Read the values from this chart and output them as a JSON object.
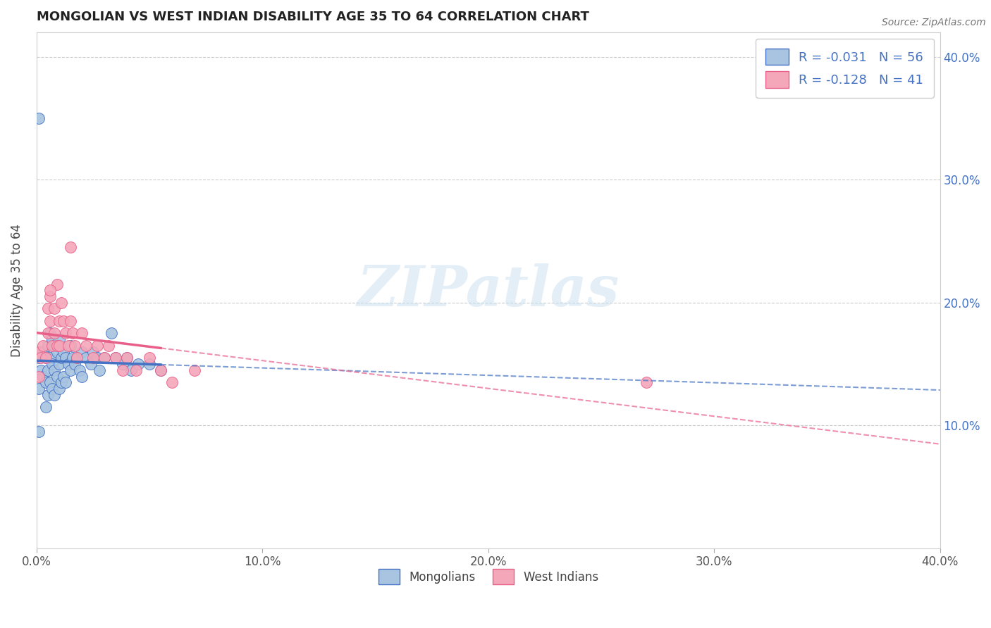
{
  "title": "MONGOLIAN VS WEST INDIAN DISABILITY AGE 35 TO 64 CORRELATION CHART",
  "source": "Source: ZipAtlas.com",
  "ylabel": "Disability Age 35 to 64",
  "xlim": [
    0.0,
    0.4
  ],
  "ylim": [
    0.0,
    0.42
  ],
  "xtick_values": [
    0.0,
    0.1,
    0.2,
    0.3,
    0.4
  ],
  "ytick_values": [
    0.1,
    0.2,
    0.3,
    0.4
  ],
  "mongolian_R": -0.031,
  "mongolian_N": 56,
  "westindian_R": -0.128,
  "westindian_N": 41,
  "mongolian_color": "#a8c4e0",
  "westindian_color": "#f4a7b9",
  "mongolian_line_color": "#4472C4",
  "westindian_line_color": "#E8608A",
  "legend_mongolians": "Mongolians",
  "legend_westindians": "West Indians",
  "mongolian_scatter_x": [
    0.001,
    0.001,
    0.002,
    0.003,
    0.003,
    0.004,
    0.004,
    0.004,
    0.005,
    0.005,
    0.005,
    0.006,
    0.006,
    0.006,
    0.007,
    0.007,
    0.007,
    0.008,
    0.008,
    0.008,
    0.009,
    0.009,
    0.01,
    0.01,
    0.01,
    0.011,
    0.011,
    0.012,
    0.012,
    0.013,
    0.013,
    0.014,
    0.015,
    0.015,
    0.016,
    0.017,
    0.018,
    0.019,
    0.02,
    0.02,
    0.022,
    0.024,
    0.025,
    0.027,
    0.028,
    0.03,
    0.035,
    0.038,
    0.04,
    0.042,
    0.045,
    0.05,
    0.055,
    0.001,
    0.033,
    0.001
  ],
  "mongolian_scatter_y": [
    0.155,
    0.13,
    0.145,
    0.16,
    0.14,
    0.155,
    0.135,
    0.115,
    0.165,
    0.145,
    0.125,
    0.175,
    0.155,
    0.135,
    0.17,
    0.15,
    0.13,
    0.165,
    0.145,
    0.125,
    0.16,
    0.14,
    0.17,
    0.15,
    0.13,
    0.155,
    0.135,
    0.16,
    0.14,
    0.155,
    0.135,
    0.15,
    0.165,
    0.145,
    0.155,
    0.15,
    0.155,
    0.145,
    0.16,
    0.14,
    0.155,
    0.15,
    0.16,
    0.155,
    0.145,
    0.155,
    0.155,
    0.15,
    0.155,
    0.145,
    0.15,
    0.15,
    0.145,
    0.35,
    0.175,
    0.095
  ],
  "westindian_scatter_x": [
    0.001,
    0.001,
    0.002,
    0.003,
    0.004,
    0.005,
    0.005,
    0.006,
    0.006,
    0.007,
    0.008,
    0.008,
    0.009,
    0.01,
    0.01,
    0.011,
    0.012,
    0.013,
    0.014,
    0.015,
    0.016,
    0.017,
    0.018,
    0.02,
    0.022,
    0.025,
    0.027,
    0.03,
    0.032,
    0.035,
    0.038,
    0.04,
    0.044,
    0.05,
    0.055,
    0.06,
    0.07,
    0.27,
    0.015,
    0.009,
    0.006
  ],
  "westindian_scatter_y": [
    0.16,
    0.14,
    0.155,
    0.165,
    0.155,
    0.195,
    0.175,
    0.205,
    0.185,
    0.165,
    0.195,
    0.175,
    0.165,
    0.185,
    0.165,
    0.2,
    0.185,
    0.175,
    0.165,
    0.185,
    0.175,
    0.165,
    0.155,
    0.175,
    0.165,
    0.155,
    0.165,
    0.155,
    0.165,
    0.155,
    0.145,
    0.155,
    0.145,
    0.155,
    0.145,
    0.135,
    0.145,
    0.135,
    0.245,
    0.215,
    0.21
  ]
}
